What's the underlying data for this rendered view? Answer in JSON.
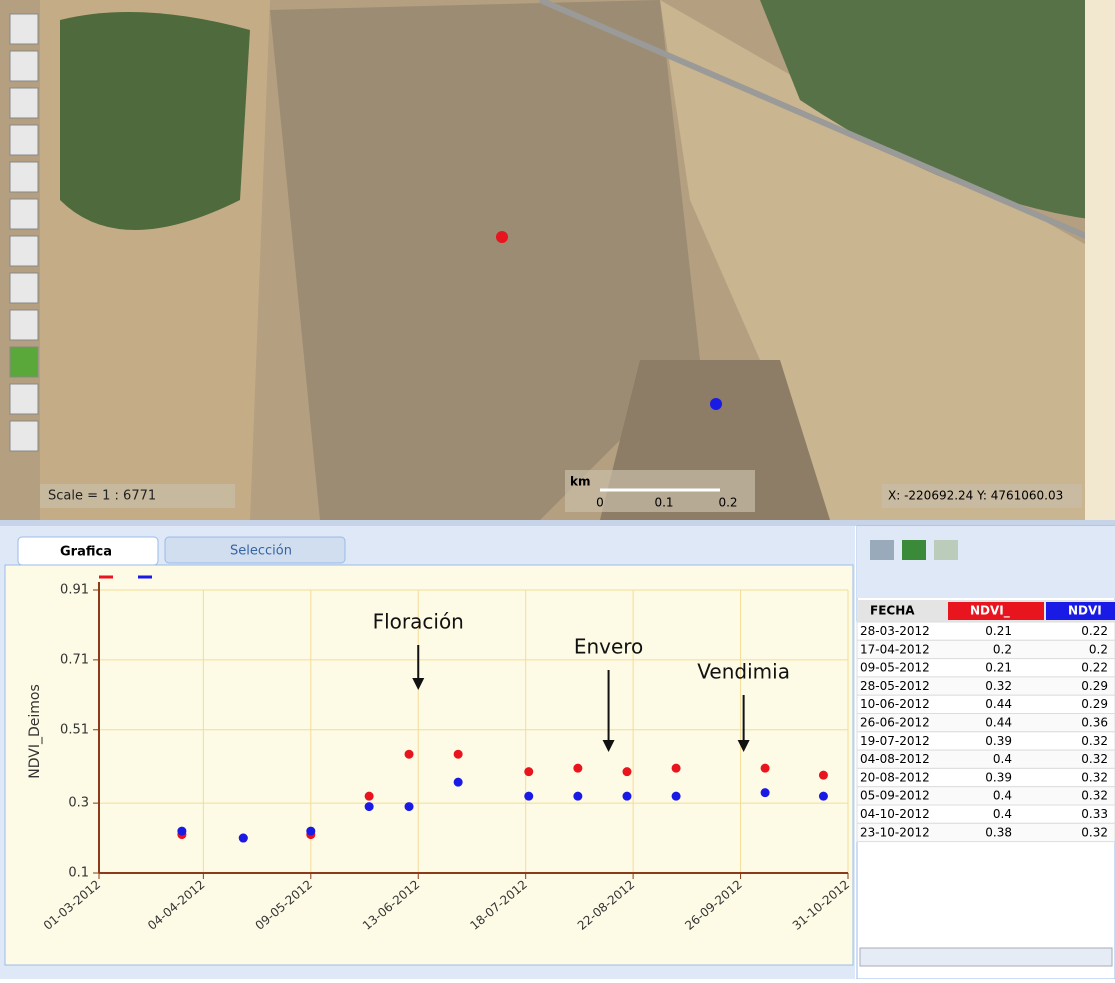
{
  "map": {
    "scale": "Scale = 1 : 6771",
    "scale_unit": "km",
    "scale_labels": [
      "0",
      "0.1",
      "0.2"
    ],
    "coords": "X: -220692.24 Y: 4761060.03"
  },
  "tabs": [
    "Grafica",
    "Selección"
  ],
  "table": {
    "headers": [
      "FECHA",
      "NDVI_",
      "NDVI"
    ]
  },
  "chart_data": {
    "type": "scatter",
    "y_label": "NDVI_Deimos",
    "x": [
      "28-03-2012",
      "17-04-2012",
      "09-05-2012",
      "28-05-2012",
      "10-06-2012",
      "26-06-2012",
      "19-07-2012",
      "04-08-2012",
      "20-08-2012",
      "05-09-2012",
      "04-10-2012",
      "23-10-2012"
    ],
    "series": [
      {
        "color": "#e8141e",
        "values": [
          0.21,
          0.2,
          0.21,
          0.32,
          0.44,
          0.44,
          0.39,
          0.4,
          0.39,
          0.4,
          0.4,
          0.38
        ]
      },
      {
        "color": "#1a1ae6",
        "values": [
          0.22,
          0.2,
          0.22,
          0.29,
          0.29,
          0.36,
          0.32,
          0.32,
          0.32,
          0.32,
          0.33,
          0.32
        ]
      }
    ],
    "xlim": [
      "01-03-2012",
      "31-10-2012"
    ],
    "xticks": [
      "01-03-2012",
      "04-04-2012",
      "09-05-2012",
      "13-06-2012",
      "18-07-2012",
      "22-08-2012",
      "26-09-2012",
      "31-10-2012"
    ],
    "ylim": [
      0.1,
      0.91
    ],
    "yticks": [
      0.1,
      0.3,
      0.51,
      0.71,
      0.91
    ],
    "grid": true,
    "annotations": [
      {
        "text": "Floración",
        "x": "13-06-2012"
      },
      {
        "text": "Envero",
        "x": "14-08-2012"
      },
      {
        "text": "Vendimia",
        "x": "27-09-2012"
      }
    ]
  }
}
